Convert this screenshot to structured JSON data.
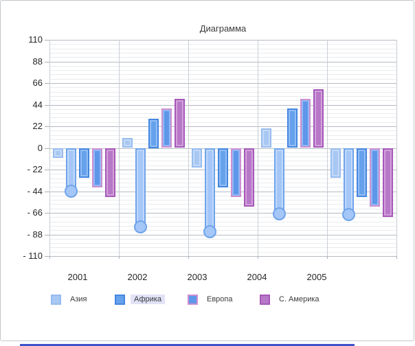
{
  "window": {
    "background": "#ffffff",
    "border_color": "#c3c7cc",
    "bottom_strip_color": "#3f54cb"
  },
  "chart_data": {
    "type": "bar",
    "title": "Диаграмма",
    "categories": [
      "2001",
      "2002",
      "2003",
      "2004",
      "2005"
    ],
    "series": [
      {
        "name": "Азия",
        "in_legend": true,
        "values": [
          -10,
          10,
          -20,
          20,
          -30
        ],
        "fill": "#a8c8f3",
        "fill_light": "#c6daf8",
        "border": "#96bcf0"
      },
      {
        "name": "",
        "in_legend": false,
        "marker": "circle",
        "values": [
          -44,
          -80,
          -85,
          -67,
          -68
        ],
        "fill": "#a4c7f8",
        "fill_light": "#c2d9fb",
        "border": "#6fa3ea"
      },
      {
        "name": "Африка",
        "in_legend": true,
        "values": [
          -30,
          30,
          -40,
          40,
          -50
        ],
        "fill": "#66a2ec",
        "fill_light": "#94bef4",
        "border": "#4486e0"
      },
      {
        "name": "Европа",
        "in_legend": true,
        "values": [
          -40,
          40,
          -50,
          50,
          -60
        ],
        "fill": "#5e97e9",
        "fill_light": "#92b8f4",
        "border": "#cd8fd2"
      },
      {
        "name": "С. Америка",
        "in_legend": true,
        "values": [
          -50,
          50,
          -60,
          60,
          -70
        ],
        "fill": "#b878c8",
        "fill_light": "#d2a2da",
        "border": "#a558b8"
      }
    ],
    "ylim": [
      -110,
      110
    ],
    "y_major_step": 22,
    "y_minor_step": 4.4,
    "y_tick_labels": [
      "110",
      "88",
      "66",
      "44",
      "22",
      "0",
      "- 22",
      "- 44",
      "- 66",
      "- 88",
      "- 110"
    ],
    "xlabel": "",
    "ylabel": "",
    "grid": {
      "horizontal_major": true,
      "horizontal_minor": true,
      "vertical_category_separators": true
    },
    "legend_position": "bottom",
    "highlighted_legend_item": "Африка"
  }
}
